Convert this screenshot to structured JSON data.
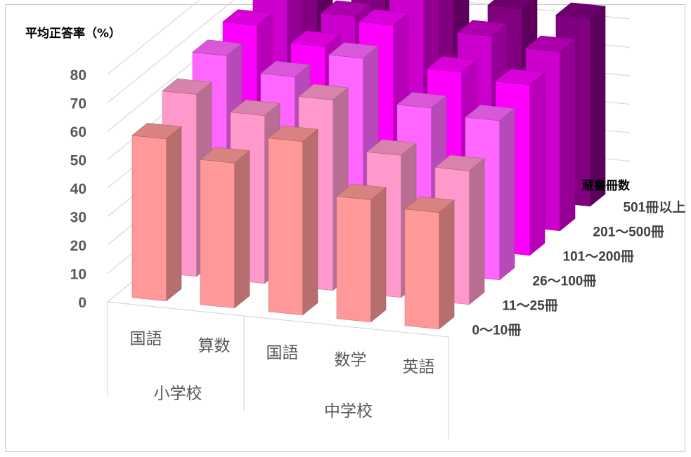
{
  "chart_data": {
    "type": "bar",
    "title": "",
    "ylabel": "平均正答率（%）",
    "depth_title": "蔵書冊数",
    "ylim": [
      0,
      80
    ],
    "yticks": [
      0,
      10,
      20,
      30,
      40,
      50,
      60,
      70,
      80
    ],
    "categories": [
      "国語",
      "算数",
      "国語",
      "数学",
      "英語"
    ],
    "category_groups": [
      {
        "label": "小学校",
        "span": 2
      },
      {
        "label": "中学校",
        "span": 3
      }
    ],
    "series": [
      {
        "name": "0～10冊",
        "color": "#ff9999",
        "values": [
          57,
          51,
          61,
          43,
          41
        ]
      },
      {
        "name": "11～25冊",
        "color": "#ff99cc",
        "values": [
          64,
          59,
          67,
          50,
          47
        ]
      },
      {
        "name": "26～100冊",
        "color": "#ff66ff",
        "values": [
          69,
          64,
          73,
          58,
          56
        ]
      },
      {
        "name": "101～200冊",
        "color": "#ff00ff",
        "values": [
          71,
          66,
          76,
          62,
          60
        ]
      },
      {
        "name": "201～500冊",
        "color": "#cc00cc",
        "values": [
          73,
          68,
          77,
          66,
          63
        ]
      },
      {
        "name": "501冊以上",
        "color": "#800080",
        "values": [
          74,
          70,
          78,
          67,
          66
        ]
      }
    ],
    "grid": true
  }
}
